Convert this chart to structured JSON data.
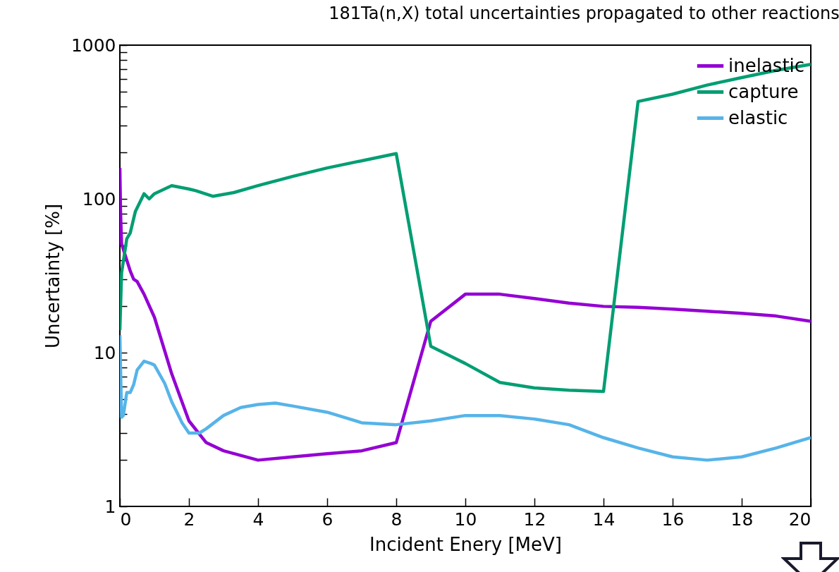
{
  "chart_data": {
    "type": "line",
    "title": "181Ta(n,X) total uncertainties propagated to other reactions",
    "xlabel": "Incident Enery [MeV]",
    "ylabel": "Uncertainty [%]",
    "log": "y",
    "legend": "top right",
    "grid": false,
    "line_style": "solid",
    "marker": "none",
    "xlim": [
      0,
      20
    ],
    "xticks": [
      0,
      2,
      4,
      6,
      8,
      10,
      12,
      14,
      16,
      18,
      20
    ],
    "ylim": [
      1,
      1000
    ],
    "yticks": [
      1,
      {
        "value": 2,
        "label": null
      },
      {
        "value": 3,
        "label": null
      },
      {
        "value": 4,
        "label": null
      },
      {
        "value": 5,
        "label": null
      },
      {
        "value": 6,
        "label": null
      },
      {
        "value": 7,
        "label": null
      },
      {
        "value": 8,
        "label": null
      },
      {
        "value": 9,
        "label": null
      },
      10,
      {
        "value": 20,
        "label": null
      },
      {
        "value": 30,
        "label": null
      },
      {
        "value": 40,
        "label": null
      },
      {
        "value": 50,
        "label": null
      },
      {
        "value": 60,
        "label": null
      },
      {
        "value": 70,
        "label": null
      },
      {
        "value": 80,
        "label": null
      },
      {
        "value": 90,
        "label": null
      },
      100,
      {
        "value": 200,
        "label": null
      },
      {
        "value": 300,
        "label": null
      },
      {
        "value": 400,
        "label": null
      },
      {
        "value": 500,
        "label": null
      },
      {
        "value": 600,
        "label": null
      },
      {
        "value": 700,
        "label": null
      },
      {
        "value": 800,
        "label": null
      },
      {
        "value": 900,
        "label": null
      },
      1000
    ],
    "series": [
      {
        "name": "inelastic",
        "color": "#9400d3",
        "x": [
          0,
          0.02,
          0.05,
          0.3,
          0.4,
          0.5,
          0.7,
          1,
          1.5,
          2,
          2.5,
          3,
          4,
          5,
          6,
          7,
          8,
          9,
          10,
          11,
          12,
          13,
          14,
          15,
          16,
          17,
          18,
          19,
          20
        ],
        "values": [
          159,
          83,
          51,
          34,
          30,
          29,
          24,
          17,
          7.3,
          3.6,
          2.6,
          2.3,
          2.0,
          2.1,
          2.2,
          2.3,
          2.6,
          16,
          24,
          24,
          22.5,
          21,
          20,
          19.7,
          19.2,
          18.6,
          18,
          17.3,
          16
        ]
      },
      {
        "name": "capture",
        "color": "#009e73",
        "x": [
          0,
          0.05,
          0.2,
          0.3,
          0.45,
          0.7,
          0.85,
          1,
          1.5,
          2,
          2.2,
          2.7,
          3.3,
          4,
          5,
          6,
          7,
          8,
          9,
          10,
          11,
          12,
          13,
          14,
          15,
          16,
          17,
          18,
          19,
          20
        ],
        "values": [
          14,
          33,
          55,
          60,
          83,
          108,
          100,
          108,
          122,
          116,
          113,
          104,
          110,
          122,
          140,
          159,
          177,
          197,
          11,
          8.5,
          6.4,
          5.9,
          5.7,
          5.6,
          430,
          480,
          550,
          615,
          685,
          750
        ]
      },
      {
        "name": "elastic",
        "color": "#56b4e9",
        "x": [
          0,
          0.05,
          0.1,
          0.2,
          0.3,
          0.4,
          0.5,
          0.7,
          0.9,
          1,
          1.3,
          1.5,
          1.8,
          2,
          2.3,
          2.5,
          3,
          3.5,
          4,
          4.5,
          5,
          6,
          7,
          8,
          9,
          10,
          11,
          12,
          13,
          14,
          15,
          16,
          17,
          18,
          19,
          20
        ],
        "values": [
          13,
          3.8,
          3.9,
          5.5,
          5.5,
          6.2,
          7.7,
          8.8,
          8.5,
          8.3,
          6.3,
          4.8,
          3.5,
          3.0,
          3.0,
          3.2,
          3.9,
          4.4,
          4.6,
          4.7,
          4.5,
          4.1,
          3.5,
          3.4,
          3.6,
          3.9,
          3.9,
          3.7,
          3.4,
          2.8,
          2.4,
          2.1,
          2.0,
          2.1,
          2.4,
          2.8
        ]
      }
    ]
  }
}
